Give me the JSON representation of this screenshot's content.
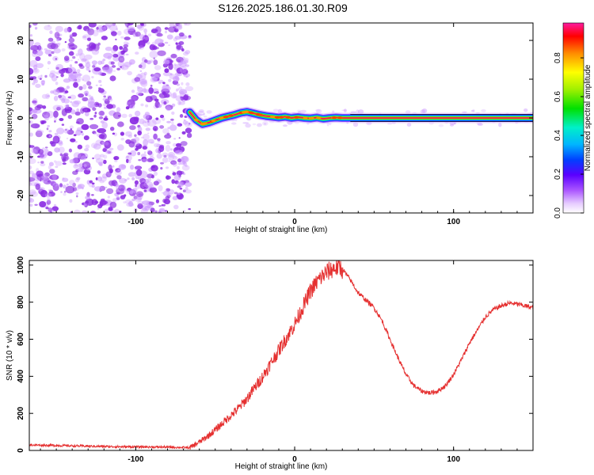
{
  "title": "S126.2025.186.01.30.R09",
  "chart_data": [
    {
      "type": "heatmap",
      "xlabel": "Height of straight line (km)",
      "ylabel": "Frequency (Hz)",
      "xlim": [
        -167,
        150
      ],
      "ylim": [
        -24.5,
        24.5
      ],
      "x_ticks": [
        "-100",
        "0",
        "100"
      ],
      "x_tick_values": [
        -100,
        0,
        100
      ],
      "y_ticks": [
        "-20",
        "-10",
        "0",
        "10",
        "20"
      ],
      "y_tick_values": [
        -20,
        -10,
        0,
        10,
        20
      ],
      "noise_region_x": [
        -167,
        -66
      ],
      "doppler_track": {
        "x": [
          -66,
          -62,
          -58,
          -54,
          -50,
          -46,
          -42,
          -38,
          -34,
          -30,
          -26,
          -22,
          -18,
          -14,
          -10,
          -6,
          -2,
          2,
          6,
          10,
          14,
          18,
          22,
          26,
          30,
          150
        ],
        "y": [
          1.5,
          -0.5,
          -1.6,
          -1.2,
          -0.6,
          0.0,
          0.4,
          0.8,
          1.3,
          1.6,
          1.2,
          0.8,
          0.5,
          0.3,
          0.1,
          0.3,
          0.0,
          0.2,
          0.0,
          -0.1,
          0.1,
          -0.2,
          0.0,
          0.1,
          0.0,
          0.0
        ]
      },
      "colorbar": {
        "label": "Normalized spectral amplitude",
        "range": [
          0,
          0.98
        ],
        "ticks": [
          "0.0",
          "0.2",
          "0.4",
          "0.6",
          "0.8"
        ],
        "tick_values": [
          0.0,
          0.2,
          0.4,
          0.6,
          0.8
        ]
      }
    },
    {
      "type": "line",
      "xlabel": "Height of straight line (km)",
      "ylabel": "SNR (10 * v/v)",
      "xlim": [
        -167,
        150
      ],
      "ylim": [
        0,
        1025
      ],
      "x_ticks": [
        "-100",
        "0",
        "100"
      ],
      "x_tick_values": [
        -100,
        0,
        100
      ],
      "y_ticks": [
        "0",
        "200",
        "400",
        "600",
        "800",
        "1000"
      ],
      "y_tick_values": [
        0,
        200,
        400,
        600,
        800,
        1000
      ],
      "series": [
        {
          "color": "#e53030",
          "x": [
            -167,
            -140,
            -110,
            -80,
            -66,
            -60,
            -55,
            -50,
            -45,
            -40,
            -35,
            -30,
            -25,
            -20,
            -15,
            -10,
            -5,
            0,
            5,
            10,
            15,
            20,
            25,
            28,
            30,
            35,
            40,
            45,
            50,
            55,
            60,
            65,
            70,
            75,
            80,
            85,
            90,
            95,
            100,
            105,
            110,
            115,
            120,
            125,
            130,
            135,
            140,
            145,
            150
          ],
          "y": [
            30,
            25,
            20,
            18,
            15,
            45,
            75,
            110,
            150,
            190,
            230,
            280,
            340,
            400,
            470,
            540,
            610,
            680,
            770,
            860,
            920,
            960,
            985,
            990,
            980,
            920,
            850,
            810,
            770,
            700,
            600,
            500,
            410,
            350,
            320,
            310,
            320,
            350,
            410,
            490,
            580,
            650,
            720,
            760,
            780,
            795,
            790,
            780,
            770
          ]
        }
      ]
    }
  ],
  "colors": {
    "noise_purple": "#8a2be2",
    "noise_light": "#cc99ff",
    "track_center": "#e8145a",
    "snr_line": "#e53030"
  }
}
